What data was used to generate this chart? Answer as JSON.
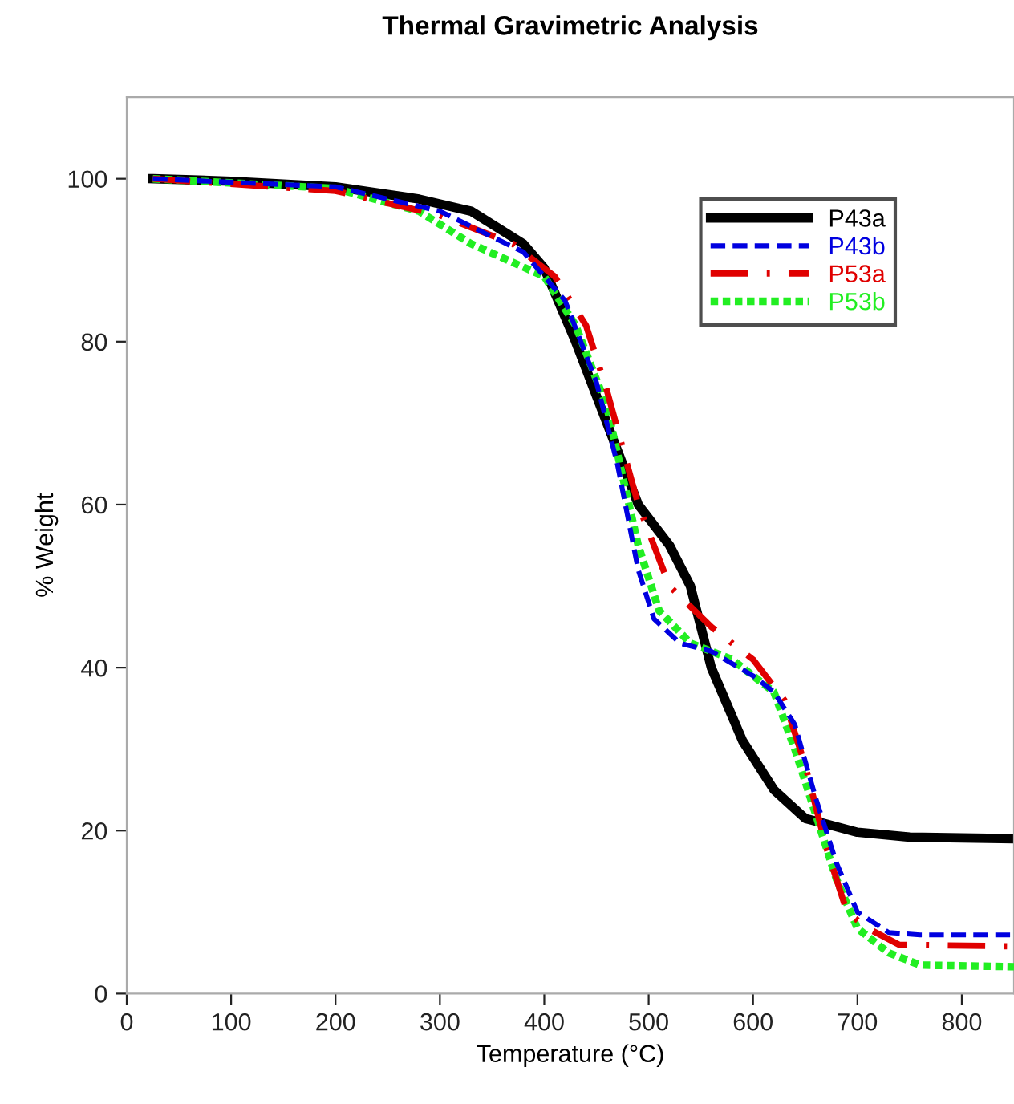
{
  "chart_data": {
    "type": "line",
    "title": "Thermal Gravimetric Analysis",
    "xlabel": "Temperature (°C)",
    "ylabel": "% Weight",
    "xlim": [
      0,
      850
    ],
    "ylim": [
      0,
      110
    ],
    "xticks": [
      0,
      100,
      200,
      300,
      400,
      500,
      600,
      700,
      800
    ],
    "yticks": [
      0,
      20,
      40,
      60,
      80,
      100
    ],
    "grid": false,
    "legend": "top right",
    "marker": "none",
    "series": [
      {
        "name": "P43a",
        "color": "#000000",
        "line_style": "solid",
        "x": [
          25,
          100,
          200,
          280,
          330,
          380,
          400,
          430,
          460,
          490,
          520,
          540,
          560,
          590,
          620,
          650,
          700,
          750,
          850
        ],
        "values": [
          100,
          99.7,
          99,
          97.5,
          96,
          92,
          89,
          80,
          70,
          60,
          55,
          50,
          40,
          31,
          25,
          21.5,
          19.8,
          19.2,
          19
        ]
      },
      {
        "name": "P43b",
        "color": "#0000e0",
        "line_style": "dashed",
        "x": [
          25,
          200,
          300,
          380,
          420,
          450,
          470,
          490,
          505,
          530,
          560,
          600,
          620,
          640,
          660,
          680,
          700,
          730,
          760,
          850
        ],
        "values": [
          100,
          99,
          96,
          91,
          85,
          75,
          65,
          52,
          46,
          43,
          42,
          39,
          37,
          33,
          24,
          16,
          10,
          7.5,
          7.2,
          7.2
        ]
      },
      {
        "name": "P53a",
        "color": "#e00000",
        "line_style": "dashdot",
        "x": [
          25,
          200,
          300,
          370,
          410,
          440,
          460,
          490,
          520,
          560,
          600,
          630,
          650,
          670,
          690,
          710,
          740,
          850
        ],
        "values": [
          100,
          98.5,
          95.5,
          92,
          88,
          82,
          74,
          60,
          50,
          45,
          41,
          36,
          28,
          18,
          10,
          8,
          6,
          5.8
        ]
      },
      {
        "name": "P53b",
        "color": "#22ee22",
        "line_style": "dotted",
        "x": [
          25,
          200,
          280,
          330,
          400,
          430,
          460,
          490,
          510,
          540,
          580,
          620,
          640,
          660,
          680,
          700,
          730,
          760,
          850
        ],
        "values": [
          100,
          98.8,
          96,
          92,
          88,
          82,
          72,
          55,
          47,
          43,
          41,
          37,
          30,
          22,
          14,
          8,
          5,
          3.5,
          3.3
        ]
      }
    ]
  }
}
